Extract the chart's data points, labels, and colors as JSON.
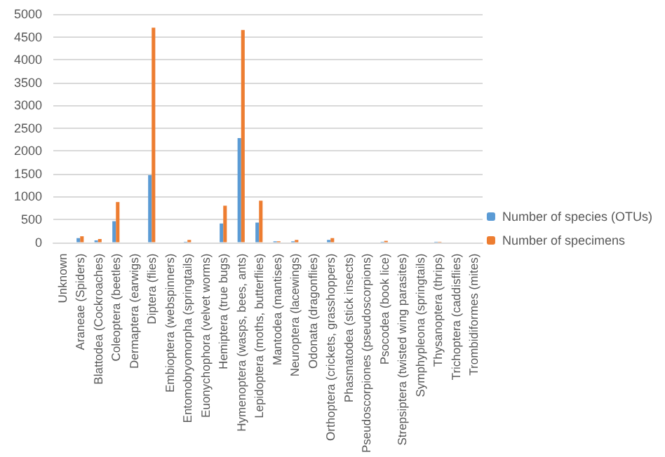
{
  "chart_data": {
    "type": "bar",
    "categories": [
      "Unknown",
      "Araneae (Spiders)",
      "Blattodea (Cockroaches)",
      "Coleoptera (beetles)",
      "Dermaptera (earwigs)",
      "Diptera (flies)",
      "Embioptera (webspinners)",
      "Entomobryomorpha (springtails)",
      "Euonychophora (velvet worms)",
      "Hemiptera (true bugs)",
      "Hymenoptera (wasps, bees, ants)",
      "Lepidoptera (moths, butterflies)",
      "Mantodea (mantises)",
      "Neuroptera (lacewings)",
      "Odonata (dragonflies)",
      "Orthoptera (crickets, grasshoppers)",
      "Phasmatodea (stick insects)",
      "Pseudoscorpiones (pseudoscorpions)",
      "Psocodea (book lice)",
      "Strepsiptera (twisted wing parasites)",
      "Symphypleona (springtails)",
      "Thysanoptera (thrips)",
      "Trichoptera (caddisflies)",
      "Trombidiformes (mites)"
    ],
    "series": [
      {
        "name": "Number of species (OTUs)",
        "color": "#5b9bd5",
        "values": [
          0,
          90,
          40,
          460,
          0,
          1470,
          0,
          10,
          0,
          410,
          2280,
          430,
          20,
          20,
          0,
          50,
          0,
          0,
          10,
          0,
          0,
          10,
          0,
          0
        ]
      },
      {
        "name": "Number of specimens",
        "color": "#ed7d31",
        "values": [
          0,
          130,
          70,
          880,
          0,
          4700,
          0,
          50,
          0,
          800,
          4650,
          910,
          20,
          50,
          0,
          90,
          0,
          0,
          30,
          0,
          0,
          10,
          0,
          0
        ]
      }
    ],
    "ylim": [
      0,
      5000
    ],
    "yticks": [
      0,
      500,
      1000,
      1500,
      2000,
      2500,
      3000,
      3500,
      4000,
      4500,
      5000
    ],
    "grid": "y",
    "legend": "right"
  }
}
